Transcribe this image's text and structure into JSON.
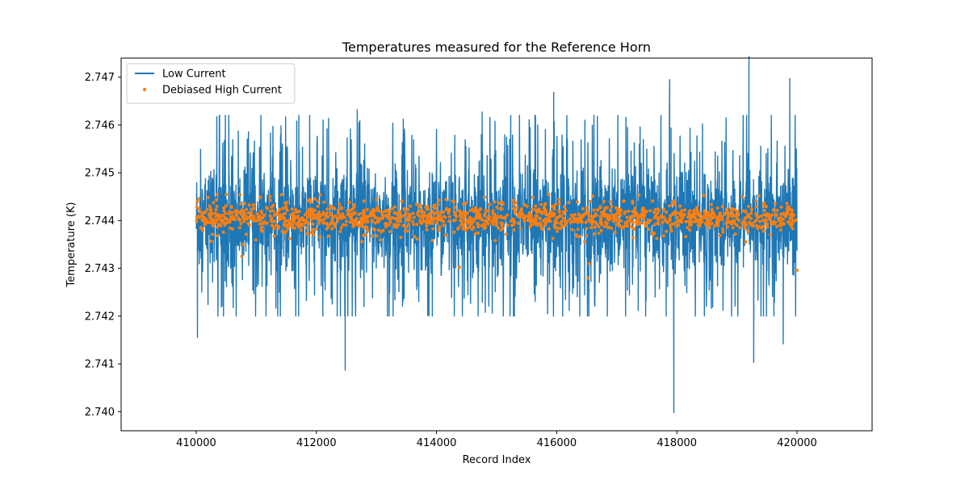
{
  "chart_data": {
    "type": "line",
    "title": "Temperatures measured for the Reference Horn",
    "xlabel": "Record Index",
    "ylabel": "Temperature (K)",
    "xlim": [
      408750,
      421250
    ],
    "ylim": [
      2.7396,
      2.7474
    ],
    "xticks": [
      410000,
      412000,
      414000,
      416000,
      418000,
      420000
    ],
    "xtick_labels": [
      "410000",
      "412000",
      "414000",
      "416000",
      "418000",
      "420000"
    ],
    "yticks": [
      2.74,
      2.741,
      2.742,
      2.743,
      2.744,
      2.745,
      2.746,
      2.747
    ],
    "ytick_labels": [
      "2.740",
      "2.741",
      "2.742",
      "2.743",
      "2.744",
      "2.745",
      "2.746",
      "2.747"
    ],
    "grid": false,
    "legend_position": "top-left",
    "x_range": [
      410000,
      420000
    ],
    "series": [
      {
        "name": "Low Current",
        "kind": "line",
        "color": "#1f77b4",
        "mean": 2.744,
        "typical_band": [
          2.7425,
          2.7455
        ],
        "notable_points": [
          {
            "x": 410020,
            "y": 2.74155
          },
          {
            "x": 412480,
            "y": 2.74087
          },
          {
            "x": 412680,
            "y": 2.74632
          },
          {
            "x": 414760,
            "y": 2.74627
          },
          {
            "x": 415950,
            "y": 2.74668
          },
          {
            "x": 417880,
            "y": 2.74695
          },
          {
            "x": 417950,
            "y": 2.73998
          },
          {
            "x": 419200,
            "y": 2.74743
          },
          {
            "x": 419280,
            "y": 2.74103
          },
          {
            "x": 419770,
            "y": 2.74142
          },
          {
            "x": 419880,
            "y": 2.74697
          }
        ]
      },
      {
        "name": "Debiased High Current",
        "kind": "scatter",
        "color": "#ff7f0e",
        "mean": 2.74405,
        "typical_band": [
          2.7438,
          2.7443
        ],
        "notable_points": [
          {
            "x": 410760,
            "y": 2.74325
          },
          {
            "x": 410780,
            "y": 2.7435
          },
          {
            "x": 414380,
            "y": 2.74302
          },
          {
            "x": 416520,
            "y": 2.7428
          },
          {
            "x": 416540,
            "y": 2.7431
          },
          {
            "x": 420000,
            "y": 2.74296
          }
        ]
      }
    ]
  }
}
